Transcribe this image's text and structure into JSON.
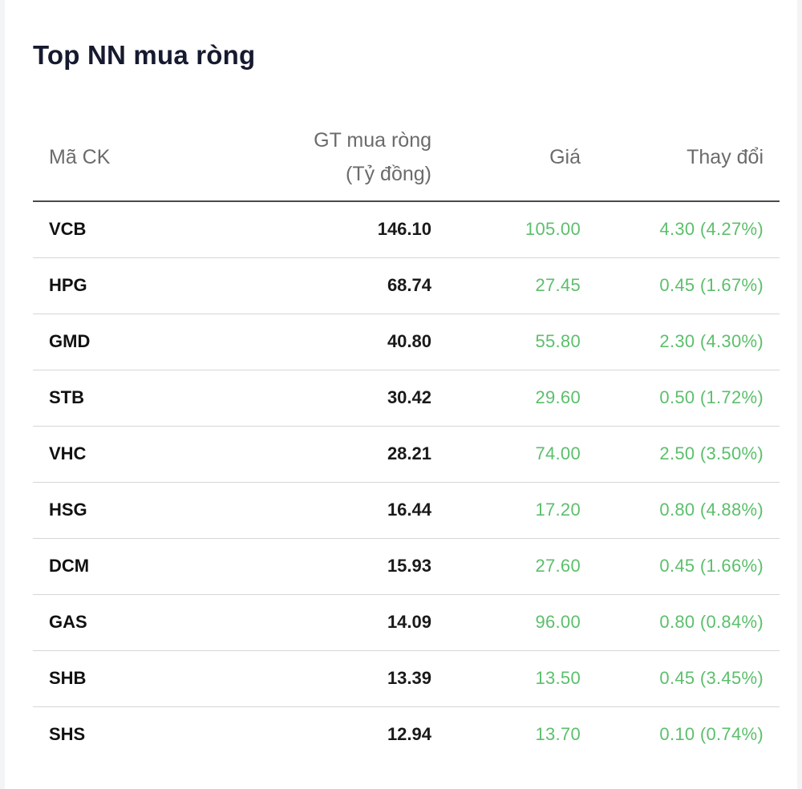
{
  "title": "Top NN mua ròng",
  "columns": {
    "code": "Mã CK",
    "value_line1": "GT mua ròng",
    "value_line2": "(Tỷ đồng)",
    "price": "Giá",
    "change": "Thay đổi"
  },
  "colors": {
    "up": "#5cbf6c",
    "title": "#161a2f",
    "header": "#6b6b6b"
  },
  "rows": [
    {
      "code": "VCB",
      "value": "146.10",
      "price": "105.00",
      "change": "4.30 (4.27%)"
    },
    {
      "code": "HPG",
      "value": "68.74",
      "price": "27.45",
      "change": "0.45 (1.67%)"
    },
    {
      "code": "GMD",
      "value": "40.80",
      "price": "55.80",
      "change": "2.30 (4.30%)"
    },
    {
      "code": "STB",
      "value": "30.42",
      "price": "29.60",
      "change": "0.50 (1.72%)"
    },
    {
      "code": "VHC",
      "value": "28.21",
      "price": "74.00",
      "change": "2.50 (3.50%)"
    },
    {
      "code": "HSG",
      "value": "16.44",
      "price": "17.20",
      "change": "0.80 (4.88%)"
    },
    {
      "code": "DCM",
      "value": "15.93",
      "price": "27.60",
      "change": "0.45 (1.66%)"
    },
    {
      "code": "GAS",
      "value": "14.09",
      "price": "96.00",
      "change": "0.80 (0.84%)"
    },
    {
      "code": "SHB",
      "value": "13.39",
      "price": "13.50",
      "change": "0.45 (3.45%)"
    },
    {
      "code": "SHS",
      "value": "12.94",
      "price": "13.70",
      "change": "0.10 (0.74%)"
    }
  ]
}
